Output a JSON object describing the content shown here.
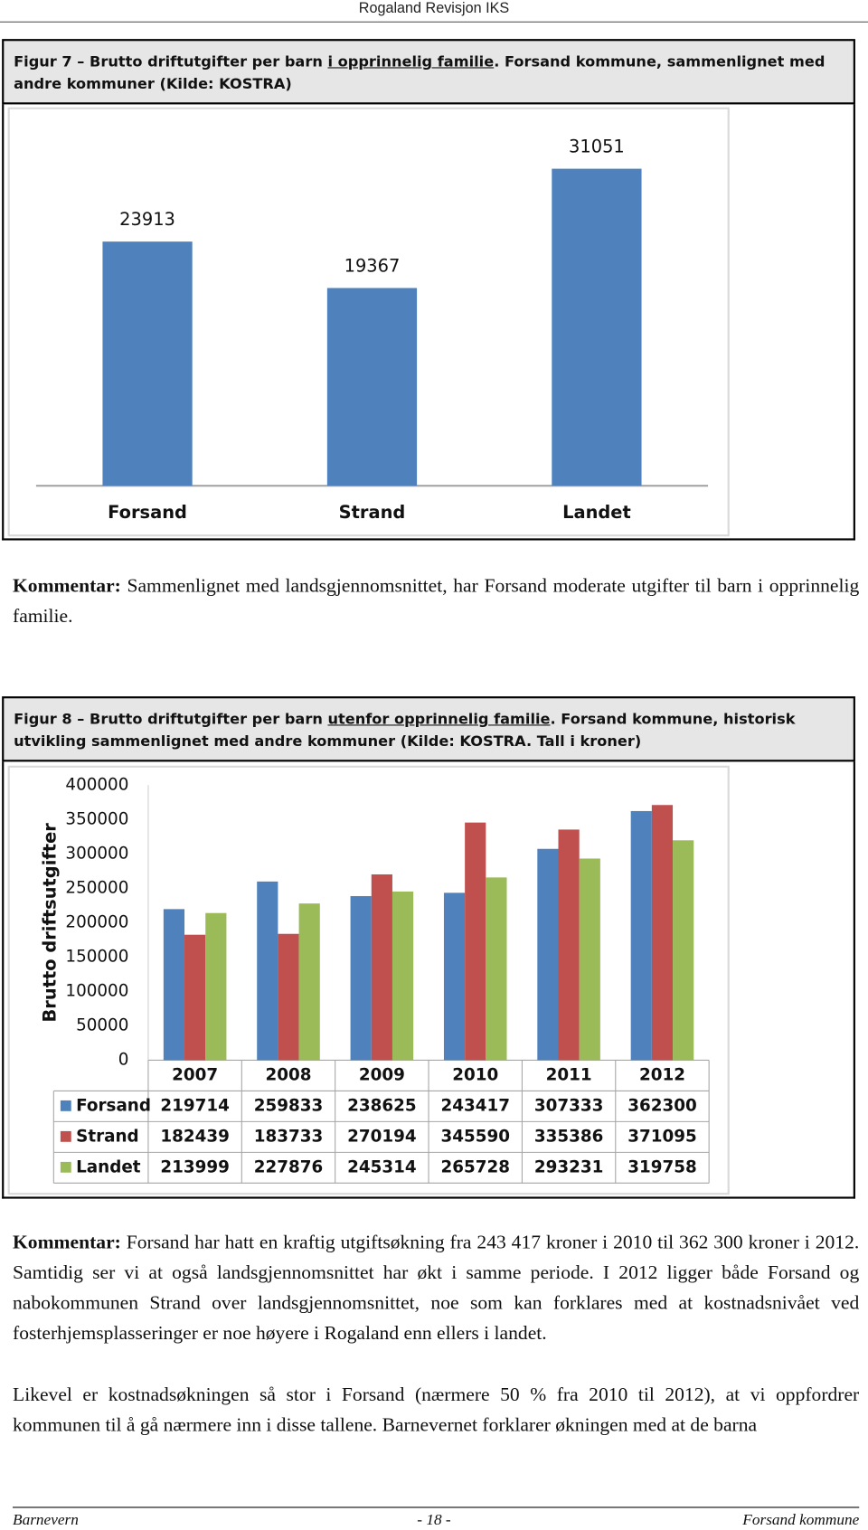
{
  "header": {
    "title": "Rogaland Revisjon IKS"
  },
  "figures": [
    {
      "caption": [
        "Figur 7 – Brutto driftutgifter per barn ",
        "i opprinnelig familie",
        ". Forsand kommune, sammenlignet med andre kommuner (Kilde: KOSTRA)"
      ]
    },
    {
      "caption": [
        "Figur 8 – Brutto driftutgifter per barn ",
        "utenfor opprinnelig familie",
        ". Forsand kommune, historisk utvikling sammenlignet med andre kommuner (Kilde: KOSTRA. Tall i kroner)"
      ]
    }
  ],
  "chart_data": [
    {
      "type": "bar",
      "categories": [
        "Forsand",
        "Strand",
        "Landet"
      ],
      "values": [
        23913,
        19367,
        31051
      ],
      "color": "#4f81bd"
    },
    {
      "type": "grouped_bar",
      "y_label": "Brutto driftsutgifter",
      "categories": [
        "2007",
        "2008",
        "2009",
        "2010",
        "2011",
        "2012"
      ],
      "series": [
        {
          "name": "Forsand",
          "color": "#4f81bd",
          "values": [
            219714,
            259833,
            238625,
            243417,
            307333,
            362300
          ]
        },
        {
          "name": "Strand",
          "color": "#c0504d",
          "values": [
            182439,
            183733,
            270194,
            345590,
            335386,
            371095
          ]
        },
        {
          "name": "Landet",
          "color": "#9bbb59",
          "values": [
            213999,
            227876,
            245314,
            265728,
            293231,
            319758
          ]
        }
      ],
      "ylim": [
        0,
        400000
      ],
      "yticks": [
        0,
        50000,
        100000,
        150000,
        200000,
        250000,
        300000,
        350000,
        400000
      ],
      "data_table": true
    }
  ],
  "comments": [
    {
      "label": "Kommentar:",
      "text": "Sammenlignet med landsgjennomsnittet, har Forsand moderate utgifter til barn i opprinnelig familie."
    },
    {
      "label": "Kommentar:",
      "text": "Forsand har hatt en kraftig utgiftsøkning fra 243 417 kroner i 2010 til 362 300 kroner i 2012. Samtidig ser vi at også landsgjennomsnittet har økt i samme periode. I 2012 ligger både Forsand og nabokommunen Strand over landsgjennomsnittet, noe som kan forklares med at kostnadsnivået ved fosterhjemsplasseringer er noe høyere i Rogaland enn ellers i landet."
    }
  ],
  "paragraphs": [
    "Likevel er kostnadsøkningen så stor i Forsand (nærmere 50 % fra 2010 til 2012), at vi oppfordrer kommunen til å gå nærmere inn i disse tallene. Barnevernet forklarer økningen med at de barna"
  ],
  "footer": {
    "left": "Barnevern",
    "center": "- 18 -",
    "right": "Forsand kommune"
  }
}
